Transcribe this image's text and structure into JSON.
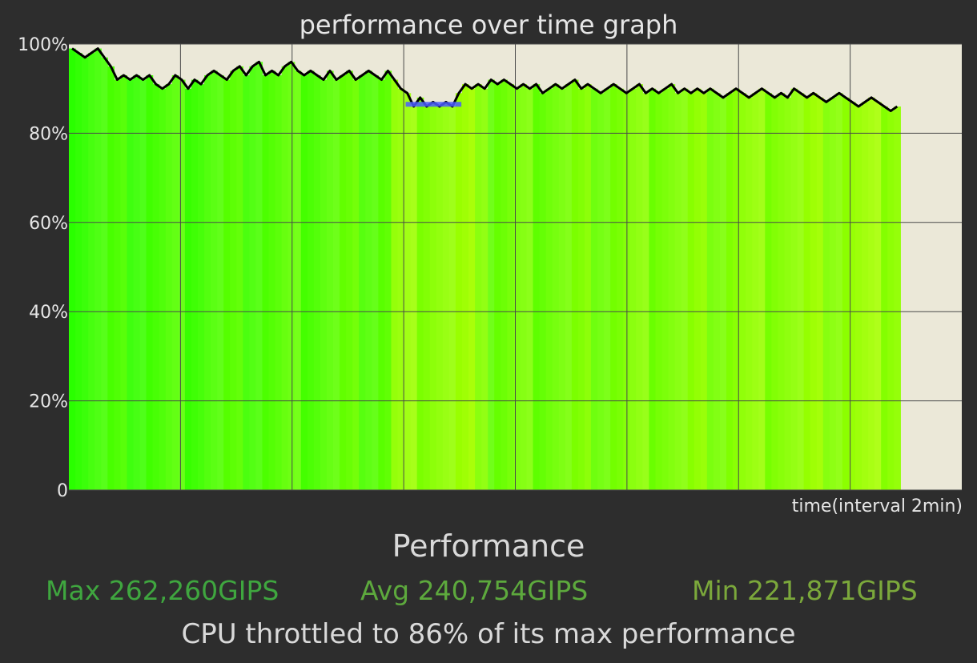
{
  "chart_data": {
    "type": "area",
    "title": "performance over time graph",
    "xlabel": "time(interval 2min)",
    "ylabel": "",
    "ylim": [
      0,
      100
    ],
    "y_tick_labels": [
      "0",
      "20%",
      "40%",
      "60%",
      "80%",
      "100%"
    ],
    "y_ticks": [
      0,
      20,
      40,
      60,
      80,
      100
    ],
    "x_interval_minutes": 2,
    "x_extent_intervals": 8,
    "data_extent_intervals": 7.45,
    "grid": true,
    "series": [
      {
        "values": [
          99,
          98,
          97,
          98,
          99,
          97,
          95,
          92,
          93,
          92,
          93,
          92,
          93,
          91,
          90,
          91,
          93,
          92,
          90,
          92,
          91,
          93,
          94,
          93,
          92,
          94,
          95,
          93,
          95,
          96,
          93,
          94,
          93,
          95,
          96,
          94,
          93,
          94,
          93,
          92,
          94,
          92,
          93,
          94,
          92,
          93,
          94,
          93,
          92,
          94,
          92,
          90,
          89,
          86,
          88,
          86,
          87,
          86,
          87,
          86,
          89,
          91,
          90,
          91,
          90,
          92,
          91,
          92,
          91,
          90,
          91,
          90,
          91,
          89,
          90,
          91,
          90,
          91,
          92,
          90,
          91,
          90,
          89,
          90,
          91,
          90,
          89,
          90,
          91,
          89,
          90,
          89,
          90,
          91,
          89,
          90,
          89,
          90,
          89,
          90,
          89,
          88,
          89,
          90,
          89,
          88,
          89,
          90,
          89,
          88,
          89,
          88,
          90,
          89,
          88,
          89,
          88,
          87,
          88,
          89,
          88,
          87,
          86,
          87,
          88,
          87,
          86,
          85,
          86
        ]
      }
    ],
    "throttle_marker": {
      "value": 86.5,
      "from_fraction": 0.405,
      "to_fraction": 0.472,
      "color": "#4a5cff"
    }
  },
  "colors": {
    "background": "#2d2d2d",
    "plot_background": "#ebe8d8",
    "grid": "#4a4a4a",
    "line": "#000000"
  },
  "footer": {
    "section_title": "Performance",
    "max_label": "Max 262,260GIPS",
    "avg_label": "Avg 240,754GIPS",
    "min_label": "Min 221,871GIPS",
    "summary": "CPU throttled to 86% of its max performance"
  }
}
